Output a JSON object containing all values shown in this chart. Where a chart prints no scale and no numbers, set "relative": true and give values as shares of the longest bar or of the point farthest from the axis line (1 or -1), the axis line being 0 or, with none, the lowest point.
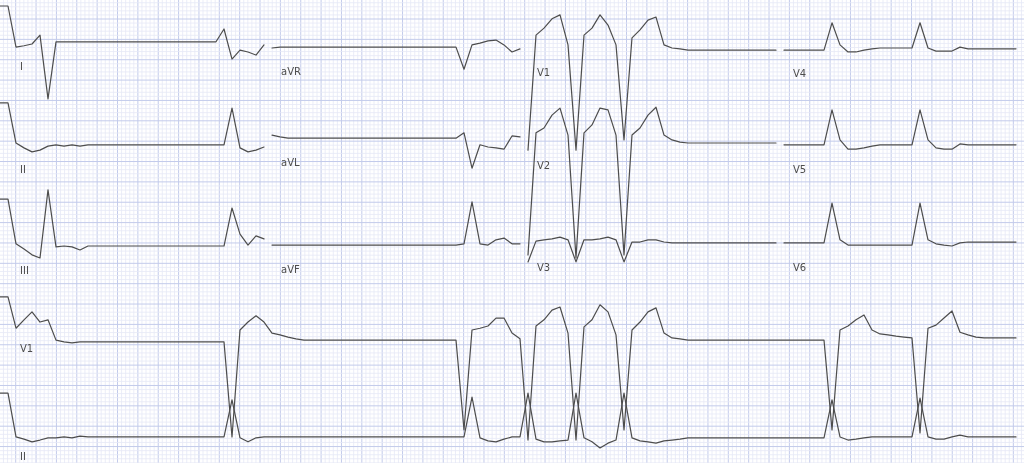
{
  "chart_data": {
    "type": "line",
    "relative": true,
    "grid": true,
    "tick_labels": false,
    "categories": [
      null,
      null,
      null,
      null,
      null,
      null,
      null,
      null,
      null,
      null,
      null,
      null,
      null,
      null,
      null,
      null,
      null,
      null,
      null,
      null,
      null,
      null,
      null,
      null,
      null,
      null,
      null,
      null,
      null,
      null,
      null,
      null,
      null,
      null,
      null,
      null,
      null,
      null,
      null,
      null,
      null,
      null,
      null,
      null,
      null,
      null,
      null,
      null,
      null,
      null,
      null,
      null,
      null,
      null,
      null,
      null,
      null,
      null,
      null,
      null,
      null,
      null,
      null,
      null,
      null,
      null,
      null,
      null,
      null,
      null,
      null,
      null,
      null,
      null,
      null,
      null,
      null,
      null,
      null,
      null,
      null,
      null,
      null,
      null,
      null,
      null,
      null,
      null,
      null,
      null,
      null,
      null,
      null,
      null,
      null,
      null,
      null,
      null,
      null,
      null,
      null,
      null,
      null,
      null,
      null,
      null,
      null,
      null,
      null,
      null,
      null,
      null,
      null,
      null,
      null,
      null,
      null,
      null,
      null,
      null,
      null,
      null,
      null,
      null,
      null,
      null,
      null,
      null
    ],
    "series": [
      {
        "name": "I",
        "color": "#4d4d4d",
        "values": [
          1,
          1,
          0.907,
          0.91,
          0.914,
          0.934,
          0.79,
          0.919,
          0.919,
          0.919,
          0.919,
          0.919,
          0.919,
          0.919,
          0.919,
          0.919,
          0.919,
          0.919,
          0.919,
          0.919,
          0.919,
          0.919,
          0.919,
          0.919,
          0.919,
          0.919,
          0.919,
          0.919,
          0.948,
          0.88,
          0.9,
          0.896,
          0.889,
          0.912,
          null,
          null,
          null,
          null,
          null,
          null,
          null,
          null,
          null,
          null,
          null,
          null,
          null,
          null,
          null,
          null,
          null,
          null,
          null,
          null,
          null,
          null,
          null,
          null,
          null,
          null,
          null,
          null,
          null,
          null,
          null,
          null,
          null,
          null,
          null,
          null,
          null,
          null,
          null,
          null,
          null,
          null,
          null,
          null,
          null,
          null,
          null,
          null,
          null,
          null,
          null,
          null,
          null,
          null,
          null,
          null,
          null,
          null,
          null,
          null,
          null,
          null,
          null,
          null,
          null,
          null,
          null,
          null,
          null,
          null,
          null,
          null,
          null,
          null,
          null,
          null,
          null,
          null,
          null,
          null,
          null,
          null,
          null,
          null,
          null,
          null,
          null,
          null,
          null,
          null,
          null,
          null,
          null,
          null
        ]
      },
      {
        "name": "aVR",
        "color": "#4d4d4d",
        "values": [
          null,
          null,
          null,
          null,
          null,
          null,
          null,
          null,
          null,
          null,
          null,
          null,
          null,
          null,
          null,
          null,
          null,
          null,
          null,
          null,
          null,
          null,
          null,
          null,
          null,
          null,
          null,
          null,
          null,
          null,
          null,
          null,
          null,
          null,
          0.905,
          0.907,
          0.907,
          0.907,
          0.907,
          0.907,
          0.907,
          0.907,
          0.907,
          0.907,
          0.907,
          0.907,
          0.907,
          0.907,
          0.907,
          0.907,
          0.907,
          0.907,
          0.907,
          0.907,
          0.907,
          0.907,
          0.907,
          0.907,
          0.857,
          0.912,
          0.916,
          0.921,
          0.923,
          0.912,
          0.896,
          0.903,
          null,
          null,
          null,
          null,
          null,
          null,
          null,
          null,
          null,
          null,
          null,
          null,
          null,
          null,
          null,
          null,
          null,
          null,
          null,
          null,
          null,
          null,
          null,
          null,
          null,
          null,
          null,
          null,
          null,
          null,
          null,
          null,
          null,
          null,
          null,
          null,
          null,
          null,
          null,
          null,
          null,
          null,
          null,
          null,
          null,
          null,
          null,
          null,
          null,
          null,
          null,
          null,
          null,
          null,
          null,
          null,
          null,
          null,
          null,
          null,
          null,
          null
        ]
      },
      {
        "name": "V1",
        "color": "#4d4d4d",
        "values": [
          null,
          null,
          null,
          null,
          null,
          null,
          null,
          null,
          null,
          null,
          null,
          null,
          null,
          null,
          null,
          null,
          null,
          null,
          null,
          null,
          null,
          null,
          null,
          null,
          null,
          null,
          null,
          null,
          null,
          null,
          null,
          null,
          null,
          null,
          null,
          null,
          null,
          null,
          null,
          null,
          null,
          null,
          null,
          null,
          null,
          null,
          null,
          null,
          null,
          null,
          null,
          null,
          null,
          null,
          null,
          null,
          null,
          null,
          null,
          null,
          null,
          null,
          null,
          null,
          null,
          null,
          0.674,
          0.934,
          0.95,
          0.971,
          0.98,
          0.912,
          0.674,
          0.934,
          0.95,
          0.98,
          0.957,
          0.912,
          0.697,
          0.928,
          0.946,
          0.968,
          0.975,
          0.912,
          0.905,
          0.903,
          0.9,
          0.9,
          0.9,
          0.9,
          0.9,
          0.9,
          0.9,
          0.9,
          0.9,
          0.9,
          0.9,
          0.9,
          null,
          null,
          null,
          null,
          null,
          null,
          null,
          null,
          null,
          null,
          null,
          null,
          null,
          null,
          null,
          null,
          null,
          null,
          null,
          null,
          null,
          null,
          null,
          null,
          null,
          null,
          null,
          null,
          null,
          null
        ]
      },
      {
        "name": "V4",
        "color": "#4d4d4d",
        "values": [
          null,
          null,
          null,
          null,
          null,
          null,
          null,
          null,
          null,
          null,
          null,
          null,
          null,
          null,
          null,
          null,
          null,
          null,
          null,
          null,
          null,
          null,
          null,
          null,
          null,
          null,
          null,
          null,
          null,
          null,
          null,
          null,
          null,
          null,
          null,
          null,
          null,
          null,
          null,
          null,
          null,
          null,
          null,
          null,
          null,
          null,
          null,
          null,
          null,
          null,
          null,
          null,
          null,
          null,
          null,
          null,
          null,
          null,
          null,
          null,
          null,
          null,
          null,
          null,
          null,
          null,
          null,
          null,
          null,
          null,
          null,
          null,
          null,
          null,
          null,
          null,
          null,
          null,
          null,
          null,
          null,
          null,
          null,
          null,
          null,
          null,
          null,
          null,
          null,
          null,
          null,
          null,
          null,
          null,
          null,
          null,
          null,
          null,
          0.9,
          0.9,
          0.9,
          0.9,
          0.9,
          0.9,
          0.962,
          0.912,
          0.896,
          0.896,
          0.9,
          0.903,
          0.905,
          0.905,
          0.905,
          0.905,
          0.905,
          0.962,
          0.905,
          0.898,
          0.898,
          0.898,
          0.907,
          0.903,
          0.903,
          0.903,
          0.903,
          0.903,
          0.903,
          0.903
        ]
      },
      {
        "name": "II",
        "color": "#4d4d4d",
        "values": [
          0.781,
          0.781,
          0.69,
          0.679,
          0.67,
          0.674,
          0.683,
          0.686,
          0.683,
          0.686,
          0.683,
          0.686,
          0.686,
          0.686,
          0.686,
          0.686,
          0.686,
          0.686,
          0.686,
          0.686,
          0.686,
          0.686,
          0.686,
          0.686,
          0.686,
          0.686,
          0.686,
          0.686,
          0.686,
          0.769,
          0.679,
          0.67,
          0.674,
          0.681,
          null,
          null,
          null,
          null,
          null,
          null,
          null,
          null,
          null,
          null,
          null,
          null,
          null,
          null,
          null,
          null,
          null,
          null,
          null,
          null,
          null,
          null,
          null,
          null,
          null,
          null,
          null,
          null,
          null,
          null,
          null,
          null,
          null,
          null,
          null,
          null,
          null,
          null,
          null,
          null,
          null,
          null,
          null,
          null,
          null,
          null,
          null,
          null,
          null,
          null,
          null,
          null,
          null,
          null,
          null,
          null,
          null,
          null,
          null,
          null,
          null,
          null,
          null,
          null,
          null,
          null,
          null,
          null,
          null,
          null,
          null,
          null,
          null,
          null,
          null,
          null,
          null,
          null,
          null,
          null,
          null,
          null,
          null,
          null,
          null,
          null,
          null,
          null,
          null,
          null,
          null,
          null,
          null,
          null
        ]
      },
      {
        "name": "aVL",
        "color": "#4d4d4d",
        "values": [
          null,
          null,
          null,
          null,
          null,
          null,
          null,
          null,
          null,
          null,
          null,
          null,
          null,
          null,
          null,
          null,
          null,
          null,
          null,
          null,
          null,
          null,
          null,
          null,
          null,
          null,
          null,
          null,
          null,
          null,
          null,
          null,
          null,
          null,
          0.708,
          0.704,
          0.701,
          0.701,
          0.701,
          0.701,
          0.701,
          0.701,
          0.701,
          0.701,
          0.701,
          0.701,
          0.701,
          0.701,
          0.701,
          0.701,
          0.701,
          0.701,
          0.701,
          0.701,
          0.701,
          0.701,
          0.701,
          0.701,
          0.713,
          0.633,
          0.686,
          0.681,
          0.679,
          0.676,
          0.706,
          0.704,
          null,
          null,
          null,
          null,
          null,
          null,
          null,
          null,
          null,
          null,
          null,
          null,
          null,
          null,
          null,
          null,
          null,
          null,
          null,
          null,
          null,
          null,
          null,
          null,
          null,
          null,
          null,
          null,
          null,
          null,
          null,
          null,
          null,
          null,
          null,
          null,
          null,
          null,
          null,
          null,
          null,
          null,
          null,
          null,
          null,
          null,
          null,
          null,
          null,
          null,
          null,
          null,
          null,
          null,
          null,
          null,
          null,
          null,
          null,
          null,
          null,
          null
        ]
      },
      {
        "name": "V2",
        "color": "#4d4d4d",
        "values": [
          null,
          null,
          null,
          null,
          null,
          null,
          null,
          null,
          null,
          null,
          null,
          null,
          null,
          null,
          null,
          null,
          null,
          null,
          null,
          null,
          null,
          null,
          null,
          null,
          null,
          null,
          null,
          null,
          null,
          null,
          null,
          null,
          null,
          null,
          null,
          null,
          null,
          null,
          null,
          null,
          null,
          null,
          null,
          null,
          null,
          null,
          null,
          null,
          null,
          null,
          null,
          null,
          null,
          null,
          null,
          null,
          null,
          null,
          null,
          null,
          null,
          null,
          null,
          null,
          null,
          null,
          0.437,
          0.713,
          0.724,
          0.753,
          0.769,
          0.708,
          0.43,
          0.713,
          0.731,
          0.769,
          0.765,
          0.708,
          0.437,
          0.708,
          0.724,
          0.753,
          0.771,
          0.708,
          0.697,
          0.692,
          0.69,
          0.69,
          0.69,
          0.69,
          0.69,
          0.69,
          0.69,
          0.69,
          0.69,
          0.69,
          0.69,
          0.69,
          null,
          null,
          null,
          null,
          null,
          null,
          null,
          null,
          null,
          null,
          null,
          null,
          null,
          null,
          null,
          null,
          null,
          null,
          null,
          null,
          null,
          null,
          null,
          null,
          null,
          null,
          null,
          null,
          null,
          null
        ]
      },
      {
        "name": "V5",
        "color": "#4d4d4d",
        "values": [
          null,
          null,
          null,
          null,
          null,
          null,
          null,
          null,
          null,
          null,
          null,
          null,
          null,
          null,
          null,
          null,
          null,
          null,
          null,
          null,
          null,
          null,
          null,
          null,
          null,
          null,
          null,
          null,
          null,
          null,
          null,
          null,
          null,
          null,
          null,
          null,
          null,
          null,
          null,
          null,
          null,
          null,
          null,
          null,
          null,
          null,
          null,
          null,
          null,
          null,
          null,
          null,
          null,
          null,
          null,
          null,
          null,
          null,
          null,
          null,
          null,
          null,
          null,
          null,
          null,
          null,
          null,
          null,
          null,
          null,
          null,
          null,
          null,
          null,
          null,
          null,
          null,
          null,
          null,
          null,
          null,
          null,
          null,
          null,
          null,
          null,
          null,
          null,
          null,
          null,
          null,
          null,
          null,
          null,
          null,
          null,
          null,
          null,
          0.686,
          0.686,
          0.686,
          0.686,
          0.686,
          0.686,
          0.765,
          0.697,
          0.676,
          0.676,
          0.679,
          0.683,
          0.686,
          0.686,
          0.686,
          0.686,
          0.686,
          0.765,
          0.697,
          0.679,
          0.676,
          0.676,
          0.688,
          0.686,
          0.686,
          0.686,
          0.686,
          0.686,
          0.686,
          0.686
        ]
      },
      {
        "name": "III",
        "color": "#4d4d4d",
        "values": [
          0.563,
          0.563,
          0.462,
          0.45,
          0.437,
          0.43,
          0.584,
          0.455,
          0.457,
          0.455,
          0.448,
          0.457,
          0.457,
          0.457,
          0.457,
          0.457,
          0.457,
          0.457,
          0.457,
          0.457,
          0.457,
          0.457,
          0.457,
          0.457,
          0.457,
          0.457,
          0.457,
          0.457,
          0.457,
          0.543,
          0.484,
          0.459,
          0.48,
          0.473,
          null,
          null,
          null,
          null,
          null,
          null,
          null,
          null,
          null,
          null,
          null,
          null,
          null,
          null,
          null,
          null,
          null,
          null,
          null,
          null,
          null,
          null,
          null,
          null,
          null,
          null,
          null,
          null,
          null,
          null,
          null,
          null,
          null,
          null,
          null,
          null,
          null,
          null,
          null,
          null,
          null,
          null,
          null,
          null,
          null,
          null,
          null,
          null,
          null,
          null,
          null,
          null,
          null,
          null,
          null,
          null,
          null,
          null,
          null,
          null,
          null,
          null,
          null,
          null,
          null,
          null,
          null,
          null,
          null,
          null,
          null,
          null,
          null,
          null,
          null,
          null,
          null,
          null,
          null,
          null,
          null,
          null,
          null,
          null,
          null,
          null,
          null,
          null,
          null,
          null,
          null,
          null,
          null,
          null
        ]
      },
      {
        "name": "aVF",
        "color": "#4d4d4d",
        "values": [
          null,
          null,
          null,
          null,
          null,
          null,
          null,
          null,
          null,
          null,
          null,
          null,
          null,
          null,
          null,
          null,
          null,
          null,
          null,
          null,
          null,
          null,
          null,
          null,
          null,
          null,
          null,
          null,
          null,
          null,
          null,
          null,
          null,
          null,
          0.459,
          0.459,
          0.459,
          0.459,
          0.459,
          0.459,
          0.459,
          0.459,
          0.459,
          0.459,
          0.459,
          0.459,
          0.459,
          0.459,
          0.459,
          0.459,
          0.459,
          0.459,
          0.459,
          0.459,
          0.459,
          0.459,
          0.459,
          0.459,
          0.462,
          0.557,
          0.462,
          0.459,
          0.471,
          0.475,
          0.462,
          0.462,
          null,
          null,
          null,
          null,
          null,
          null,
          null,
          null,
          null,
          null,
          null,
          null,
          null,
          null,
          null,
          null,
          null,
          null,
          null,
          null,
          null,
          null,
          null,
          null,
          null,
          null,
          null,
          null,
          null,
          null,
          null,
          null,
          null,
          null,
          null,
          null,
          null,
          null,
          null,
          null,
          null,
          null,
          null,
          null,
          null,
          null,
          null,
          null,
          null,
          null,
          null,
          null,
          null,
          null,
          null,
          null,
          null,
          null,
          null,
          null,
          null,
          null
        ]
      },
      {
        "name": "V3",
        "color": "#4d4d4d",
        "values": [
          null,
          null,
          null,
          null,
          null,
          null,
          null,
          null,
          null,
          null,
          null,
          null,
          null,
          null,
          null,
          null,
          null,
          null,
          null,
          null,
          null,
          null,
          null,
          null,
          null,
          null,
          null,
          null,
          null,
          null,
          null,
          null,
          null,
          null,
          null,
          null,
          null,
          null,
          null,
          null,
          null,
          null,
          null,
          null,
          null,
          null,
          null,
          null,
          null,
          null,
          null,
          null,
          null,
          null,
          null,
          null,
          null,
          null,
          null,
          null,
          null,
          null,
          null,
          null,
          null,
          null,
          0.421,
          0.468,
          0.471,
          0.473,
          0.477,
          0.471,
          0.421,
          0.471,
          0.471,
          0.473,
          0.477,
          0.471,
          0.421,
          0.466,
          0.466,
          0.471,
          0.471,
          0.466,
          0.464,
          0.464,
          0.464,
          0.464,
          0.464,
          0.464,
          0.464,
          0.464,
          0.464,
          0.464,
          0.464,
          0.464,
          0.464,
          0.464,
          null,
          null,
          null,
          null,
          null,
          null,
          null,
          null,
          null,
          null,
          null,
          null,
          null,
          null,
          null,
          null,
          null,
          null,
          null,
          null,
          null,
          null,
          null,
          null,
          null,
          null,
          null,
          null,
          null,
          null
        ]
      },
      {
        "name": "V6",
        "color": "#4d4d4d",
        "values": [
          null,
          null,
          null,
          null,
          null,
          null,
          null,
          null,
          null,
          null,
          null,
          null,
          null,
          null,
          null,
          null,
          null,
          null,
          null,
          null,
          null,
          null,
          null,
          null,
          null,
          null,
          null,
          null,
          null,
          null,
          null,
          null,
          null,
          null,
          null,
          null,
          null,
          null,
          null,
          null,
          null,
          null,
          null,
          null,
          null,
          null,
          null,
          null,
          null,
          null,
          null,
          null,
          null,
          null,
          null,
          null,
          null,
          null,
          null,
          null,
          null,
          null,
          null,
          null,
          null,
          null,
          null,
          null,
          null,
          null,
          null,
          null,
          null,
          null,
          null,
          null,
          null,
          null,
          null,
          null,
          null,
          null,
          null,
          null,
          null,
          null,
          null,
          null,
          null,
          null,
          null,
          null,
          null,
          null,
          null,
          null,
          null,
          null,
          0.464,
          0.464,
          0.464,
          0.464,
          0.464,
          0.464,
          0.554,
          0.471,
          0.459,
          0.459,
          0.459,
          0.459,
          0.459,
          0.459,
          0.459,
          0.459,
          0.459,
          0.554,
          0.471,
          0.462,
          0.459,
          0.457,
          0.464,
          0.466,
          0.466,
          0.466,
          0.466,
          0.466,
          0.466,
          0.466
        ]
      },
      {
        "name": "V1",
        "color": "#4d4d4d",
        "values": [
          0.342,
          0.342,
          0.271,
          0.29,
          0.308,
          0.285,
          0.29,
          0.244,
          0.24,
          0.238,
          0.24,
          0.24,
          0.24,
          0.24,
          0.24,
          0.24,
          0.24,
          0.24,
          0.24,
          0.24,
          0.24,
          0.24,
          0.24,
          0.24,
          0.24,
          0.24,
          0.24,
          0.24,
          0.24,
          0.025,
          0.267,
          0.285,
          0.299,
          0.285,
          0.26,
          0.256,
          0.251,
          0.247,
          0.244,
          0.244,
          0.244,
          0.244,
          0.244,
          0.244,
          0.244,
          0.244,
          0.244,
          0.244,
          0.244,
          0.244,
          0.244,
          0.244,
          0.244,
          0.244,
          0.244,
          0.244,
          0.244,
          0.244,
          0.041,
          0.267,
          0.271,
          0.276,
          0.294,
          0.294,
          0.26,
          0.247,
          0.018,
          0.276,
          0.29,
          0.312,
          0.319,
          0.26,
          0.018,
          0.274,
          0.29,
          0.324,
          0.308,
          0.256,
          0.041,
          0.267,
          0.285,
          0.308,
          0.317,
          0.26,
          0.249,
          0.247,
          0.244,
          0.244,
          0.244,
          0.244,
          0.244,
          0.244,
          0.244,
          0.244,
          0.244,
          0.244,
          0.244,
          0.244,
          0.244,
          0.244,
          0.244,
          0.244,
          0.244,
          0.244,
          0.041,
          0.267,
          0.276,
          0.29,
          0.301,
          0.267,
          0.258,
          0.256,
          0.253,
          0.251,
          0.249,
          0.034,
          0.271,
          0.278,
          0.294,
          0.31,
          0.262,
          0.256,
          0.251,
          0.249,
          0.249,
          0.249,
          0.249,
          0.249
        ]
      },
      {
        "name": "II",
        "color": "#4d4d4d",
        "values": [
          0.124,
          0.124,
          0.025,
          0.02,
          0.014,
          0.018,
          0.023,
          0.023,
          0.025,
          0.023,
          0.027,
          0.025,
          0.025,
          0.025,
          0.025,
          0.025,
          0.025,
          0.025,
          0.025,
          0.025,
          0.025,
          0.025,
          0.025,
          0.025,
          0.025,
          0.025,
          0.025,
          0.025,
          0.025,
          0.109,
          0.023,
          0.014,
          0.023,
          0.025,
          0.025,
          0.025,
          0.025,
          0.025,
          0.025,
          0.025,
          0.025,
          0.025,
          0.025,
          0.025,
          0.025,
          0.025,
          0.025,
          0.025,
          0.025,
          0.025,
          0.025,
          0.025,
          0.025,
          0.025,
          0.025,
          0.025,
          0.025,
          0.025,
          0.025,
          0.115,
          0.023,
          0.016,
          0.014,
          0.02,
          0.025,
          0.025,
          0.124,
          0.02,
          0.014,
          0.014,
          0.016,
          0.018,
          0.124,
          0.023,
          0.014,
          0,
          0.011,
          0.018,
          0.124,
          0.023,
          0.016,
          0.014,
          0.011,
          0.016,
          0.018,
          0.02,
          0.023,
          0.023,
          0.023,
          0.023,
          0.023,
          0.023,
          0.023,
          0.023,
          0.023,
          0.023,
          0.023,
          0.023,
          0.023,
          0.023,
          0.023,
          0.023,
          0.023,
          0.023,
          0.109,
          0.025,
          0.018,
          0.02,
          0.023,
          0.025,
          0.025,
          0.025,
          0.025,
          0.025,
          0.025,
          0.113,
          0.025,
          0.02,
          0.02,
          0.025,
          0.029,
          0.025,
          0.025,
          0.025,
          0.025,
          0.025,
          0.025,
          0.025
        ]
      }
    ]
  }
}
